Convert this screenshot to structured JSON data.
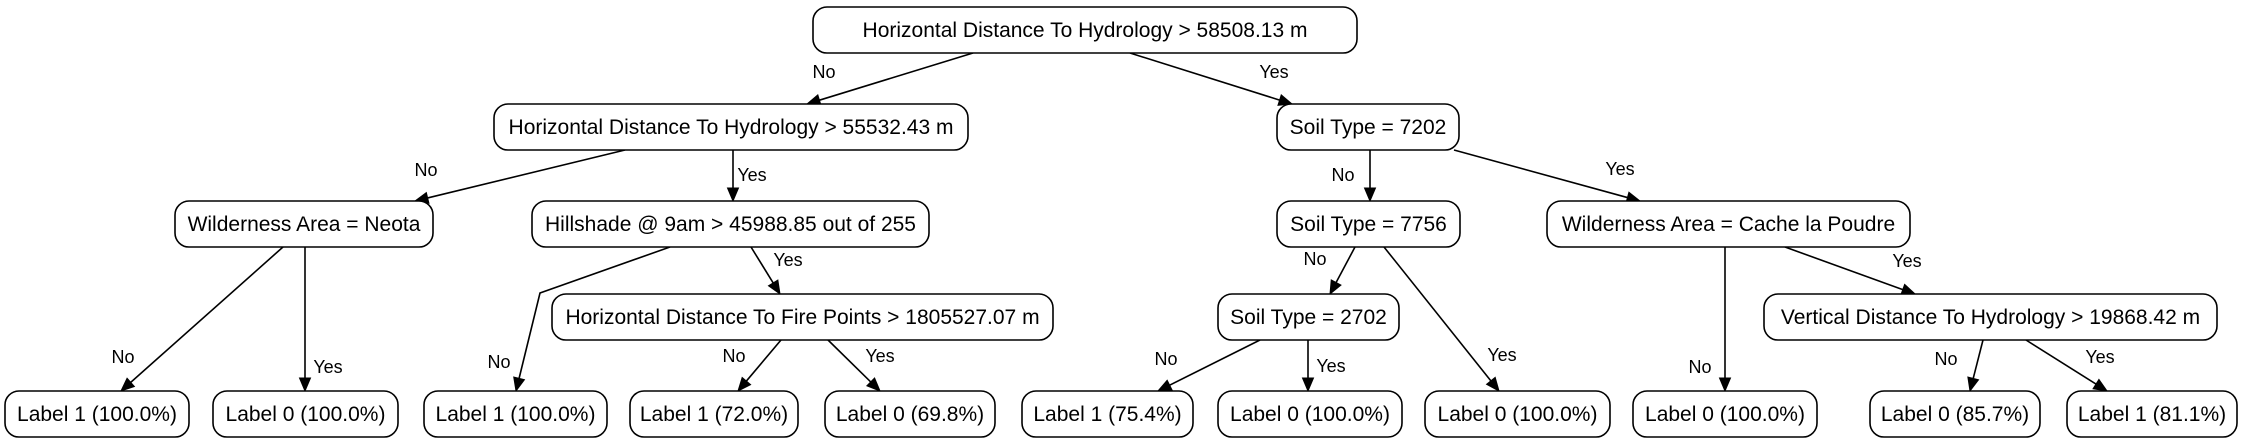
{
  "nodes": {
    "n0": "Horizontal Distance To Hydrology > 58508.13 m",
    "n1": "Horizontal Distance To Hydrology > 55532.43 m",
    "n2": "Soil Type = 7202",
    "n3": "Wilderness Area = Neota",
    "n4": "Hillshade @ 9am > 45988.85 out of 255",
    "n5": "Soil Type = 7756",
    "n6": "Wilderness Area = Cache la Poudre",
    "n7": "Horizontal Distance To Fire Points > 1805527.07 m",
    "n8": "Soil Type = 2702",
    "n9": "Vertical Distance To Hydrology > 19868.42 m",
    "l0": "Label 1 (100.0%)",
    "l1": "Label 0 (100.0%)",
    "l2": "Label 1 (100.0%)",
    "l3": "Label 1 (72.0%)",
    "l4": "Label 0 (69.8%)",
    "l5": "Label 1 (75.4%)",
    "l6": "Label 0 (100.0%)",
    "l7": "Label 0 (100.0%)",
    "l8": "Label 0 (100.0%)",
    "l9": "Label 0 (85.7%)",
    "l10": "Label 1 (81.1%)"
  },
  "branch_labels": {
    "no": "No",
    "yes": "Yes"
  }
}
